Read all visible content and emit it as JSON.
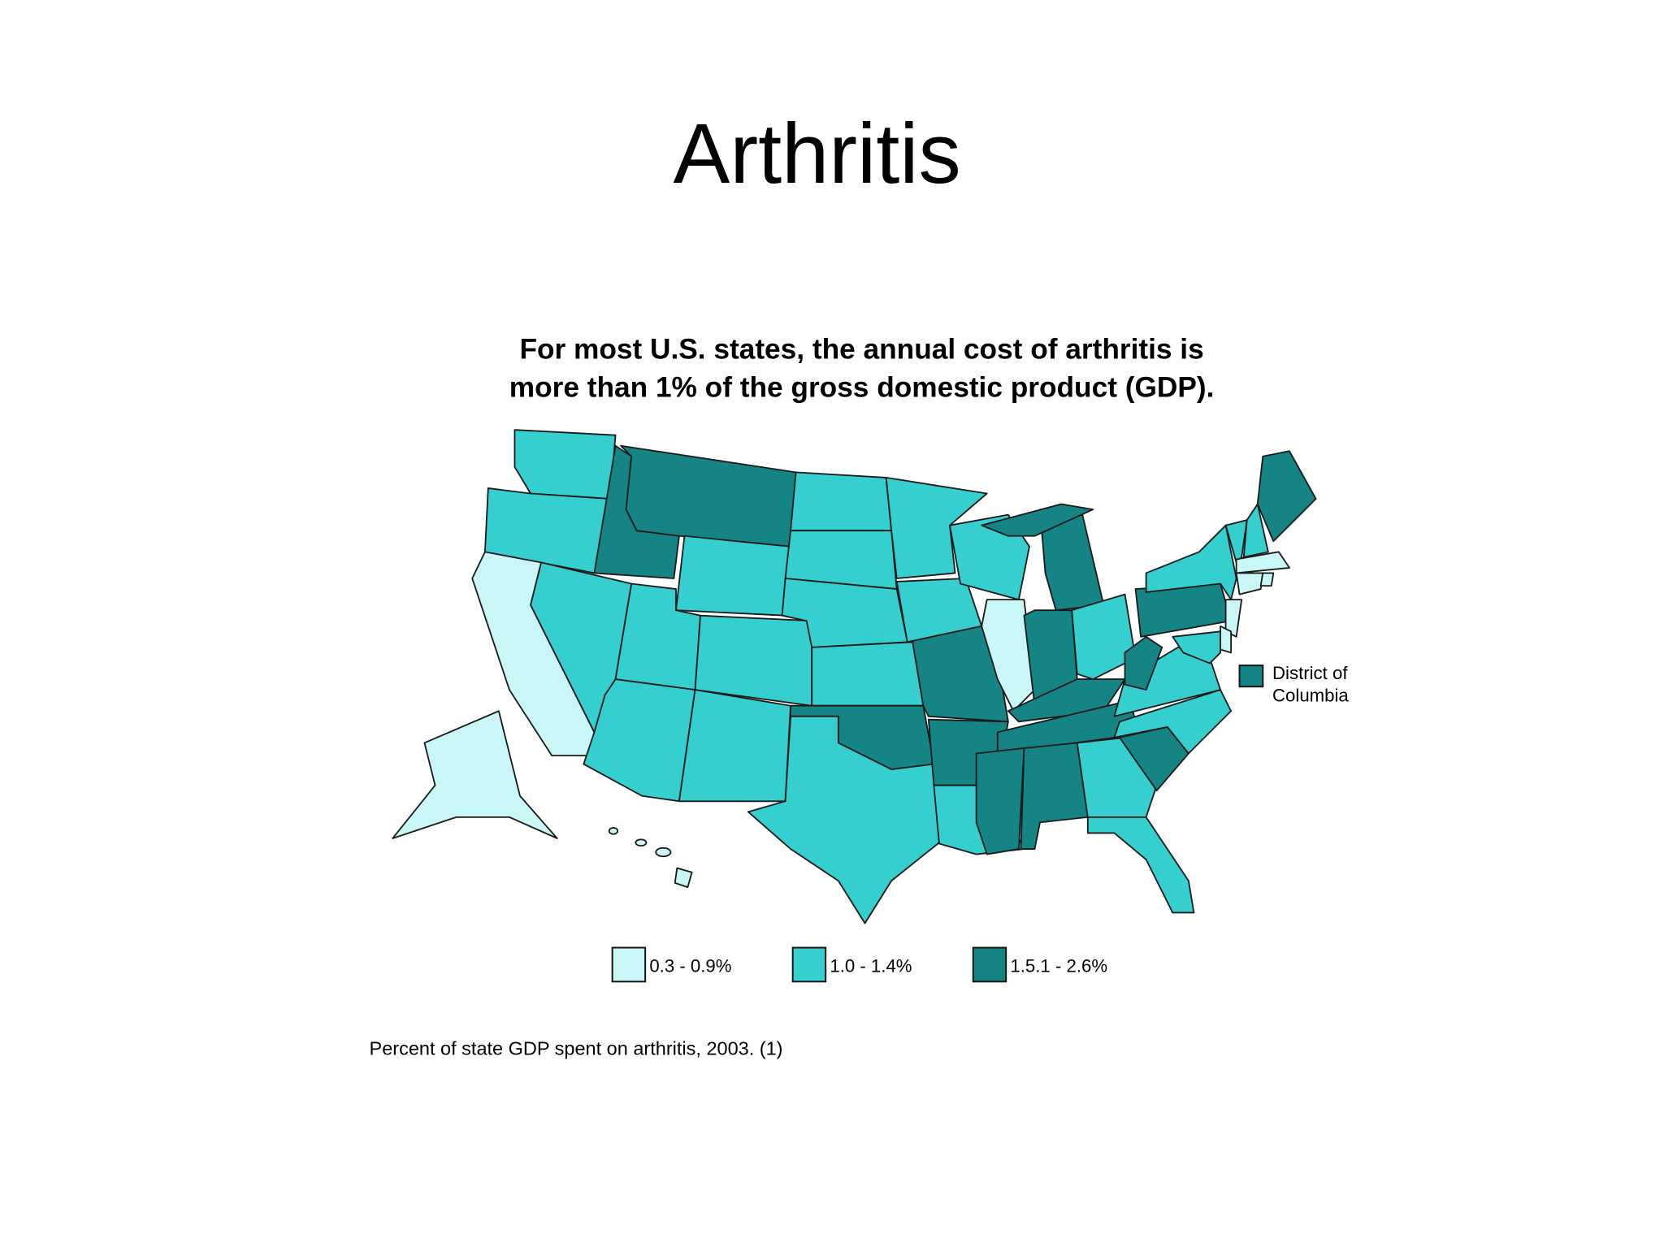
{
  "title": "Arthritis",
  "map": {
    "title": [
      "For most U.S. states, the annual cost of arthritis is",
      "more than 1% of the gross domestic product (GDP)."
    ],
    "dc_label": [
      "District of",
      "Columbia"
    ],
    "legend": [
      "0.3 - 0.9%",
      "1.0 - 1.4%",
      "1.5.1 - 2.6%"
    ],
    "caption": "Percent of state GDP spent on arthritis, 2003. (1)"
  }
}
